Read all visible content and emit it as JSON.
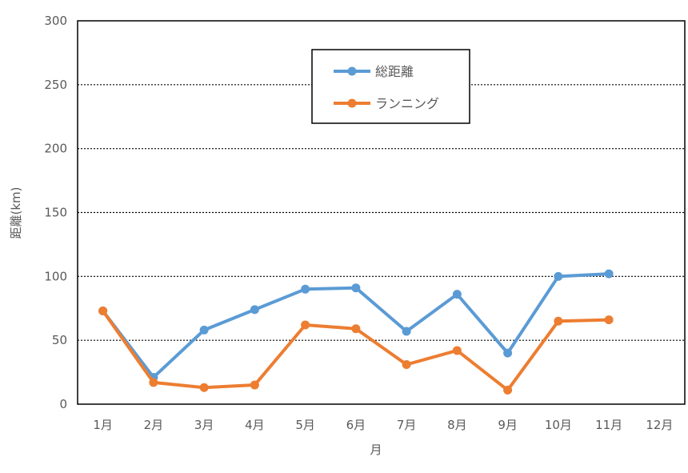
{
  "chart_data": {
    "type": "line",
    "categories": [
      "1月",
      "2月",
      "3月",
      "4月",
      "5月",
      "6月",
      "7月",
      "8月",
      "9月",
      "10月",
      "11月",
      "12月"
    ],
    "series": [
      {
        "name": "総距離",
        "color": "#5B9BD5",
        "values": [
          73,
          21,
          58,
          74,
          90,
          91,
          57,
          86,
          40,
          100,
          102,
          null
        ]
      },
      {
        "name": "ランニング",
        "color": "#ED7D31",
        "values": [
          73,
          17,
          13,
          15,
          62,
          59,
          31,
          42,
          11,
          65,
          66,
          null
        ]
      }
    ],
    "xlabel": "月",
    "ylabel": "距離(km)",
    "ylim": [
      0,
      300
    ],
    "yticks": [
      0,
      50,
      100,
      150,
      200,
      250,
      300
    ],
    "grid": "horizontal dotted",
    "legend_position": "top-center"
  }
}
